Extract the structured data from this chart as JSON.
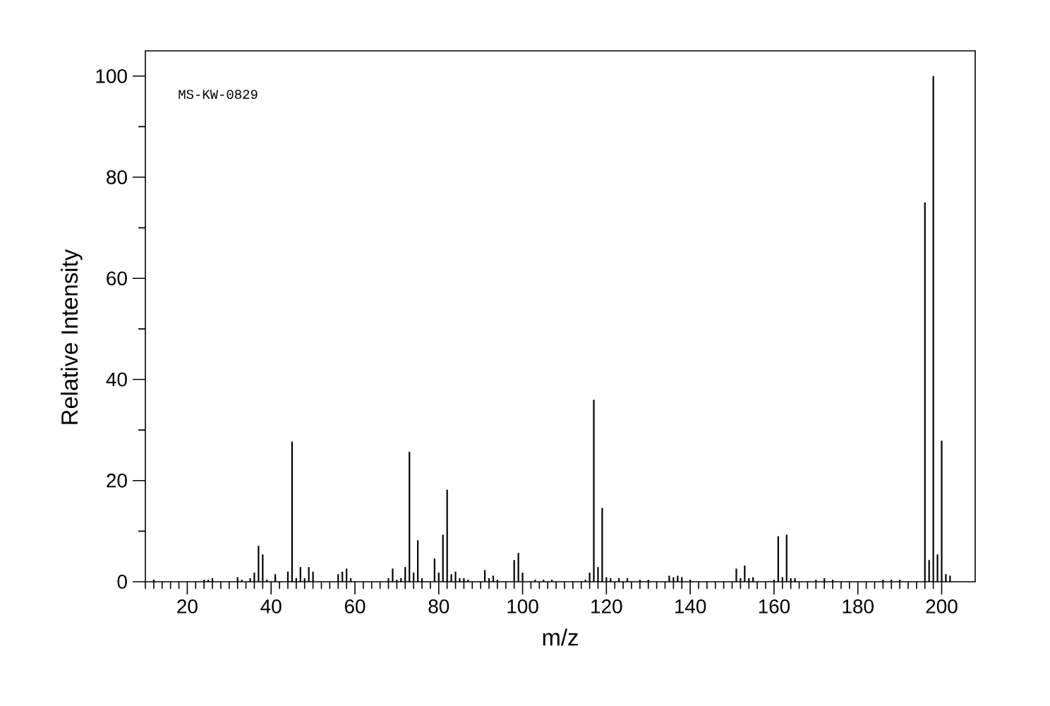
{
  "chart_data": {
    "type": "bar",
    "xlabel": "m/z",
    "ylabel": "Relative Intensity",
    "annotations": [
      "MS-KW-0829"
    ],
    "color": "#000000",
    "x": [
      12,
      24,
      25,
      26,
      32,
      33,
      35,
      36,
      37,
      38,
      39,
      41,
      44,
      45,
      46,
      47,
      48,
      49,
      50,
      56,
      57,
      58,
      59,
      68,
      69,
      70,
      71,
      72,
      73,
      74,
      75,
      76,
      79,
      80,
      81,
      82,
      83,
      84,
      85,
      86,
      87,
      91,
      92,
      93,
      94,
      98,
      99,
      100,
      103,
      105,
      107,
      115,
      116,
      117,
      118,
      119,
      120,
      121,
      123,
      125,
      128,
      130,
      135,
      136,
      137,
      138,
      140,
      151,
      152,
      153,
      154,
      155,
      160,
      161,
      162,
      163,
      164,
      165,
      170,
      172,
      174,
      186,
      188,
      190,
      196,
      197,
      198,
      199,
      200,
      201,
      202
    ],
    "values": [
      0.4,
      0.4,
      0.4,
      0.7,
      0.9,
      0.4,
      0.7,
      1.8,
      7.1,
      5.4,
      0.4,
      1.5,
      2.0,
      27.7,
      0.7,
      2.9,
      0.7,
      2.9,
      2.0,
      1.5,
      2.0,
      2.6,
      0.7,
      0.7,
      2.6,
      0.4,
      0.7,
      2.9,
      25.7,
      1.8,
      8.2,
      0.7,
      4.6,
      1.8,
      9.3,
      18.2,
      1.5,
      2.0,
      0.7,
      0.7,
      0.4,
      2.3,
      0.7,
      1.2,
      0.4,
      4.3,
      5.7,
      1.8,
      0.4,
      0.4,
      0.4,
      0.4,
      1.8,
      36.0,
      2.9,
      14.6,
      0.9,
      0.7,
      0.7,
      0.7,
      0.4,
      0.4,
      1.2,
      0.9,
      1.2,
      0.9,
      0.4,
      2.6,
      0.7,
      3.2,
      0.7,
      0.9,
      0.4,
      9.0,
      0.9,
      9.3,
      0.7,
      0.7,
      0.4,
      0.7,
      0.4,
      0.4,
      0.4,
      0.4,
      75.0,
      4.3,
      100,
      5.4,
      27.9,
      1.5,
      1.2
    ],
    "xlim": [
      10,
      208
    ],
    "xticks": [
      {
        "value": 10,
        "label": null
      },
      {
        "value": 12,
        "label": null
      },
      {
        "value": 14,
        "label": null
      },
      {
        "value": 16,
        "label": null
      },
      {
        "value": 18,
        "label": null
      },
      20,
      {
        "value": 22,
        "label": null
      },
      {
        "value": 24,
        "label": null
      },
      {
        "value": 26,
        "label": null
      },
      {
        "value": 28,
        "label": null
      },
      {
        "value": 30,
        "label": null
      },
      {
        "value": 32,
        "label": null
      },
      {
        "value": 34,
        "label": null
      },
      {
        "value": 36,
        "label": null
      },
      {
        "value": 38,
        "label": null
      },
      40,
      {
        "value": 42,
        "label": null
      },
      {
        "value": 44,
        "label": null
      },
      {
        "value": 46,
        "label": null
      },
      {
        "value": 48,
        "label": null
      },
      {
        "value": 50,
        "label": null
      },
      {
        "value": 52,
        "label": null
      },
      {
        "value": 54,
        "label": null
      },
      {
        "value": 56,
        "label": null
      },
      {
        "value": 58,
        "label": null
      },
      60,
      {
        "value": 62,
        "label": null
      },
      {
        "value": 64,
        "label": null
      },
      {
        "value": 66,
        "label": null
      },
      {
        "value": 68,
        "label": null
      },
      {
        "value": 70,
        "label": null
      },
      {
        "value": 72,
        "label": null
      },
      {
        "value": 74,
        "label": null
      },
      {
        "value": 76,
        "label": null
      },
      {
        "value": 78,
        "label": null
      },
      80,
      {
        "value": 82,
        "label": null
      },
      {
        "value": 84,
        "label": null
      },
      {
        "value": 86,
        "label": null
      },
      {
        "value": 88,
        "label": null
      },
      {
        "value": 90,
        "label": null
      },
      {
        "value": 92,
        "label": null
      },
      {
        "value": 94,
        "label": null
      },
      {
        "value": 96,
        "label": null
      },
      {
        "value": 98,
        "label": null
      },
      100,
      {
        "value": 102,
        "label": null
      },
      {
        "value": 104,
        "label": null
      },
      {
        "value": 106,
        "label": null
      },
      {
        "value": 108,
        "label": null
      },
      {
        "value": 110,
        "label": null
      },
      {
        "value": 112,
        "label": null
      },
      {
        "value": 114,
        "label": null
      },
      {
        "value": 116,
        "label": null
      },
      {
        "value": 118,
        "label": null
      },
      120,
      {
        "value": 122,
        "label": null
      },
      {
        "value": 124,
        "label": null
      },
      {
        "value": 126,
        "label": null
      },
      {
        "value": 128,
        "label": null
      },
      {
        "value": 130,
        "label": null
      },
      {
        "value": 132,
        "label": null
      },
      {
        "value": 134,
        "label": null
      },
      {
        "value": 136,
        "label": null
      },
      {
        "value": 138,
        "label": null
      },
      140,
      {
        "value": 142,
        "label": null
      },
      {
        "value": 144,
        "label": null
      },
      {
        "value": 146,
        "label": null
      },
      {
        "value": 148,
        "label": null
      },
      {
        "value": 150,
        "label": null
      },
      {
        "value": 152,
        "label": null
      },
      {
        "value": 154,
        "label": null
      },
      {
        "value": 156,
        "label": null
      },
      {
        "value": 158,
        "label": null
      },
      160,
      {
        "value": 162,
        "label": null
      },
      {
        "value": 164,
        "label": null
      },
      {
        "value": 166,
        "label": null
      },
      {
        "value": 168,
        "label": null
      },
      {
        "value": 170,
        "label": null
      },
      {
        "value": 172,
        "label": null
      },
      {
        "value": 174,
        "label": null
      },
      {
        "value": 176,
        "label": null
      },
      {
        "value": 178,
        "label": null
      },
      180,
      {
        "value": 182,
        "label": null
      },
      {
        "value": 184,
        "label": null
      },
      {
        "value": 186,
        "label": null
      },
      {
        "value": 188,
        "label": null
      },
      {
        "value": 190,
        "label": null
      },
      {
        "value": 192,
        "label": null
      },
      {
        "value": 194,
        "label": null
      },
      {
        "value": 196,
        "label": null
      },
      {
        "value": 198,
        "label": null
      },
      200
    ],
    "ylim": [
      0,
      105
    ],
    "yticks": [
      0,
      {
        "value": 10,
        "label": null
      },
      20,
      {
        "value": 30,
        "label": null
      },
      40,
      {
        "value": 50,
        "label": null
      },
      60,
      {
        "value": 70,
        "label": null
      },
      80,
      {
        "value": 90,
        "label": null
      },
      100
    ]
  }
}
